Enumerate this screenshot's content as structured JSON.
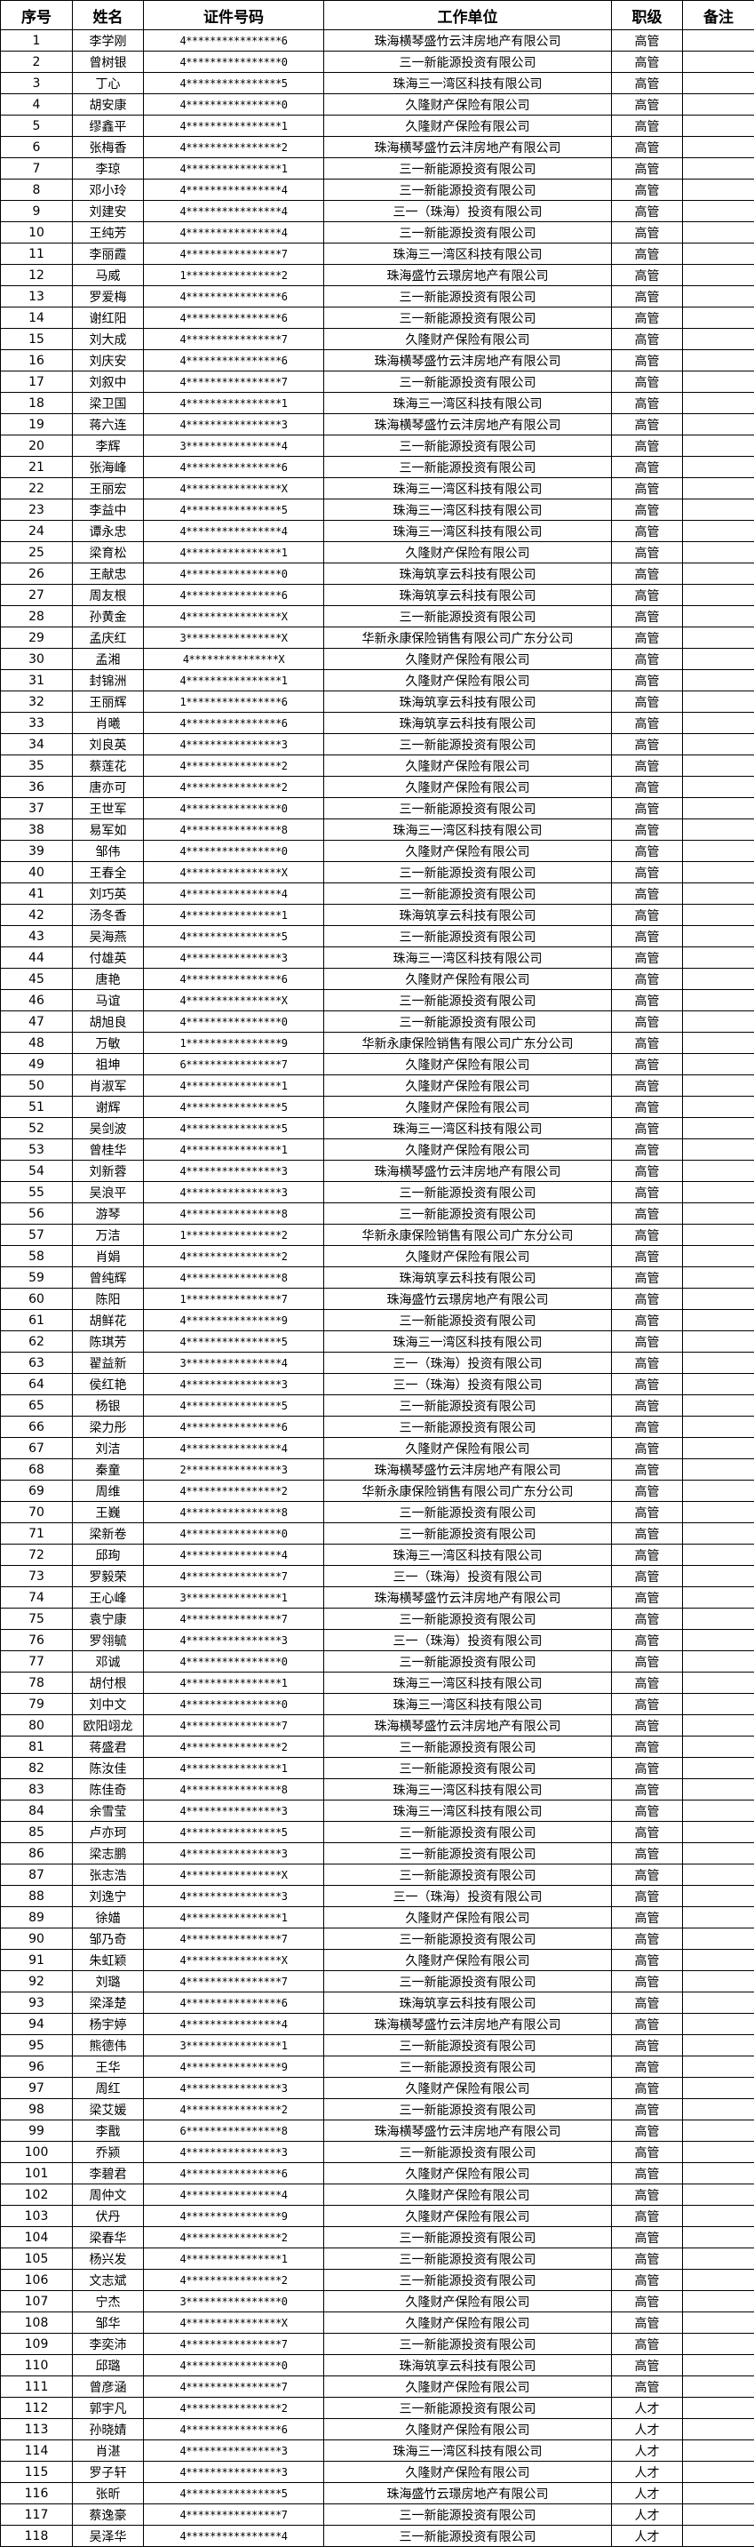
{
  "headers": [
    "序号",
    "姓名",
    "证件号码",
    "工作单位",
    "职级",
    "备注"
  ],
  "rows": [
    [
      "1",
      "李学刚",
      "4****************6",
      "珠海横琴盛竹云沣房地产有限公司",
      "高管",
      ""
    ],
    [
      "2",
      "曾树银",
      "4****************0",
      "三一新能源投资有限公司",
      "高管",
      ""
    ],
    [
      "3",
      "丁心",
      "4****************5",
      "珠海三一湾区科技有限公司",
      "高管",
      ""
    ],
    [
      "4",
      "胡安康",
      "4****************0",
      "久隆财产保险有限公司",
      "高管",
      ""
    ],
    [
      "5",
      "缪鑫平",
      "4****************1",
      "久隆财产保险有限公司",
      "高管",
      ""
    ],
    [
      "6",
      "张梅香",
      "4****************2",
      "珠海横琴盛竹云沣房地产有限公司",
      "高管",
      ""
    ],
    [
      "7",
      "李琼",
      "4****************1",
      "三一新能源投资有限公司",
      "高管",
      ""
    ],
    [
      "8",
      "邓小玲",
      "4****************4",
      "三一新能源投资有限公司",
      "高管",
      ""
    ],
    [
      "9",
      "刘建安",
      "4****************4",
      "三一（珠海）投资有限公司",
      "高管",
      ""
    ],
    [
      "10",
      "王纯芳",
      "4****************4",
      "三一新能源投资有限公司",
      "高管",
      ""
    ],
    [
      "11",
      "李丽霞",
      "4****************7",
      "珠海三一湾区科技有限公司",
      "高管",
      ""
    ],
    [
      "12",
      "马威",
      "1****************2",
      "珠海盛竹云璟房地产有限公司",
      "高管",
      ""
    ],
    [
      "13",
      "罗爱梅",
      "4****************6",
      "三一新能源投资有限公司",
      "高管",
      ""
    ],
    [
      "14",
      "谢红阳",
      "4****************6",
      "三一新能源投资有限公司",
      "高管",
      ""
    ],
    [
      "15",
      "刘大成",
      "4****************7",
      "久隆财产保险有限公司",
      "高管",
      ""
    ],
    [
      "16",
      "刘庆安",
      "4****************6",
      "珠海横琴盛竹云沣房地产有限公司",
      "高管",
      ""
    ],
    [
      "17",
      "刘叙中",
      "4****************7",
      "三一新能源投资有限公司",
      "高管",
      ""
    ],
    [
      "18",
      "梁卫国",
      "4****************1",
      "珠海三一湾区科技有限公司",
      "高管",
      ""
    ],
    [
      "19",
      "蒋六连",
      "4****************3",
      "珠海横琴盛竹云沣房地产有限公司",
      "高管",
      ""
    ],
    [
      "20",
      "李辉",
      "3****************4",
      "三一新能源投资有限公司",
      "高管",
      ""
    ],
    [
      "21",
      "张海峰",
      "4****************6",
      "三一新能源投资有限公司",
      "高管",
      ""
    ],
    [
      "22",
      "王丽宏",
      "4****************X",
      "珠海三一湾区科技有限公司",
      "高管",
      ""
    ],
    [
      "23",
      "李益中",
      "4****************5",
      "珠海三一湾区科技有限公司",
      "高管",
      ""
    ],
    [
      "24",
      "谭永忠",
      "4****************4",
      "珠海三一湾区科技有限公司",
      "高管",
      ""
    ],
    [
      "25",
      "梁育松",
      "4****************1",
      "久隆财产保险有限公司",
      "高管",
      ""
    ],
    [
      "26",
      "王献忠",
      "4****************0",
      "珠海筑享云科技有限公司",
      "高管",
      ""
    ],
    [
      "27",
      "周友根",
      "4****************6",
      "珠海筑享云科技有限公司",
      "高管",
      ""
    ],
    [
      "28",
      "孙黄金",
      "4****************X",
      "三一新能源投资有限公司",
      "高管",
      ""
    ],
    [
      "29",
      "孟庆红",
      "3****************X",
      "华新永康保险销售有限公司广东分公司",
      "高管",
      ""
    ],
    [
      "30",
      "孟湘",
      "4***************X",
      "久隆财产保险有限公司",
      "高管",
      ""
    ],
    [
      "31",
      "封锦洲",
      "4****************1",
      "久隆财产保险有限公司",
      "高管",
      ""
    ],
    [
      "32",
      "王丽辉",
      "1****************6",
      "珠海筑享云科技有限公司",
      "高管",
      ""
    ],
    [
      "33",
      "肖曦",
      "4****************6",
      "珠海筑享云科技有限公司",
      "高管",
      ""
    ],
    [
      "34",
      "刘良英",
      "4****************3",
      "三一新能源投资有限公司",
      "高管",
      ""
    ],
    [
      "35",
      "蔡莲花",
      "4****************2",
      "久隆财产保险有限公司",
      "高管",
      ""
    ],
    [
      "36",
      "唐亦可",
      "4****************2",
      "久隆财产保险有限公司",
      "高管",
      ""
    ],
    [
      "37",
      "王世军",
      "4****************0",
      "三一新能源投资有限公司",
      "高管",
      ""
    ],
    [
      "38",
      "易军如",
      "4****************8",
      "珠海三一湾区科技有限公司",
      "高管",
      ""
    ],
    [
      "39",
      "邹伟",
      "4****************0",
      "久隆财产保险有限公司",
      "高管",
      ""
    ],
    [
      "40",
      "王春全",
      "4****************X",
      "三一新能源投资有限公司",
      "高管",
      ""
    ],
    [
      "41",
      "刘巧英",
      "4****************4",
      "三一新能源投资有限公司",
      "高管",
      ""
    ],
    [
      "42",
      "汤冬香",
      "4****************1",
      "珠海筑享云科技有限公司",
      "高管",
      ""
    ],
    [
      "43",
      "吴海燕",
      "4****************5",
      "三一新能源投资有限公司",
      "高管",
      ""
    ],
    [
      "44",
      "付雄英",
      "4****************3",
      "珠海三一湾区科技有限公司",
      "高管",
      ""
    ],
    [
      "45",
      "唐艳",
      "4****************6",
      "久隆财产保险有限公司",
      "高管",
      ""
    ],
    [
      "46",
      "马谊",
      "4****************X",
      "三一新能源投资有限公司",
      "高管",
      ""
    ],
    [
      "47",
      "胡旭良",
      "4****************0",
      "三一新能源投资有限公司",
      "高管",
      ""
    ],
    [
      "48",
      "万敏",
      "1****************9",
      "华新永康保险销售有限公司广东分公司",
      "高管",
      ""
    ],
    [
      "49",
      "祖坤",
      "6****************7",
      "久隆财产保险有限公司",
      "高管",
      ""
    ],
    [
      "50",
      "肖淑军",
      "4****************1",
      "久隆财产保险有限公司",
      "高管",
      ""
    ],
    [
      "51",
      "谢辉",
      "4****************5",
      "久隆财产保险有限公司",
      "高管",
      ""
    ],
    [
      "52",
      "吴剑波",
      "4****************5",
      "珠海三一湾区科技有限公司",
      "高管",
      ""
    ],
    [
      "53",
      "曾桂华",
      "4****************1",
      "久隆财产保险有限公司",
      "高管",
      ""
    ],
    [
      "54",
      "刘新蓉",
      "4****************3",
      "珠海横琴盛竹云沣房地产有限公司",
      "高管",
      ""
    ],
    [
      "55",
      "吴浪平",
      "4****************3",
      "三一新能源投资有限公司",
      "高管",
      ""
    ],
    [
      "56",
      "游琴",
      "4****************8",
      "三一新能源投资有限公司",
      "高管",
      ""
    ],
    [
      "57",
      "万洁",
      "1****************2",
      "华新永康保险销售有限公司广东分公司",
      "高管",
      ""
    ],
    [
      "58",
      "肖娟",
      "4****************2",
      "久隆财产保险有限公司",
      "高管",
      ""
    ],
    [
      "59",
      "曾纯辉",
      "4****************8",
      "珠海筑享云科技有限公司",
      "高管",
      ""
    ],
    [
      "60",
      "陈阳",
      "1****************7",
      "珠海盛竹云璟房地产有限公司",
      "高管",
      ""
    ],
    [
      "61",
      "胡鲜花",
      "4****************9",
      "三一新能源投资有限公司",
      "高管",
      ""
    ],
    [
      "62",
      "陈琪芳",
      "4****************5",
      "珠海三一湾区科技有限公司",
      "高管",
      ""
    ],
    [
      "63",
      "翟益新",
      "3****************4",
      "三一（珠海）投资有限公司",
      "高管",
      ""
    ],
    [
      "64",
      "侯红艳",
      "4****************3",
      "三一（珠海）投资有限公司",
      "高管",
      ""
    ],
    [
      "65",
      "杨银",
      "4****************5",
      "三一新能源投资有限公司",
      "高管",
      ""
    ],
    [
      "66",
      "梁力彤",
      "4****************6",
      "三一新能源投资有限公司",
      "高管",
      ""
    ],
    [
      "67",
      "刘洁",
      "4****************4",
      "久隆财产保险有限公司",
      "高管",
      ""
    ],
    [
      "68",
      "秦童",
      "2****************3",
      "珠海横琴盛竹云沣房地产有限公司",
      "高管",
      ""
    ],
    [
      "69",
      "周维",
      "4****************2",
      "华新永康保险销售有限公司广东分公司",
      "高管",
      ""
    ],
    [
      "70",
      "王巍",
      "4****************8",
      "三一新能源投资有限公司",
      "高管",
      ""
    ],
    [
      "71",
      "梁新卷",
      "4****************0",
      "三一新能源投资有限公司",
      "高管",
      ""
    ],
    [
      "72",
      "邱珣",
      "4****************4",
      "珠海三一湾区科技有限公司",
      "高管",
      ""
    ],
    [
      "73",
      "罗毅荣",
      "4****************7",
      "三一（珠海）投资有限公司",
      "高管",
      ""
    ],
    [
      "74",
      "王心峰",
      "3****************1",
      "珠海横琴盛竹云沣房地产有限公司",
      "高管",
      ""
    ],
    [
      "75",
      "袁宁康",
      "4****************7",
      "三一新能源投资有限公司",
      "高管",
      ""
    ],
    [
      "76",
      "罗翎毓",
      "4****************3",
      "三一（珠海）投资有限公司",
      "高管",
      ""
    ],
    [
      "77",
      "邓诚",
      "4****************0",
      "三一新能源投资有限公司",
      "高管",
      ""
    ],
    [
      "78",
      "胡付根",
      "4****************1",
      "珠海三一湾区科技有限公司",
      "高管",
      ""
    ],
    [
      "79",
      "刘中文",
      "4****************0",
      "珠海三一湾区科技有限公司",
      "高管",
      ""
    ],
    [
      "80",
      "欧阳翊龙",
      "4****************7",
      "珠海横琴盛竹云沣房地产有限公司",
      "高管",
      ""
    ],
    [
      "81",
      "蒋盛君",
      "4****************2",
      "三一新能源投资有限公司",
      "高管",
      ""
    ],
    [
      "82",
      "陈汝佳",
      "4****************1",
      "三一新能源投资有限公司",
      "高管",
      ""
    ],
    [
      "83",
      "陈佳奇",
      "4****************8",
      "珠海三一湾区科技有限公司",
      "高管",
      ""
    ],
    [
      "84",
      "余雪莹",
      "4****************3",
      "珠海三一湾区科技有限公司",
      "高管",
      ""
    ],
    [
      "85",
      "卢亦珂",
      "4****************5",
      "三一新能源投资有限公司",
      "高管",
      ""
    ],
    [
      "86",
      "梁志鹏",
      "4****************3",
      "三一新能源投资有限公司",
      "高管",
      ""
    ],
    [
      "87",
      "张志浩",
      "4****************X",
      "三一新能源投资有限公司",
      "高管",
      ""
    ],
    [
      "88",
      "刘逸宁",
      "4****************3",
      "三一（珠海）投资有限公司",
      "高管",
      ""
    ],
    [
      "89",
      "徐媌",
      "4****************1",
      "久隆财产保险有限公司",
      "高管",
      ""
    ],
    [
      "90",
      "邹乃奇",
      "4****************7",
      "三一新能源投资有限公司",
      "高管",
      ""
    ],
    [
      "91",
      "朱虹颖",
      "4****************X",
      "久隆财产保险有限公司",
      "高管",
      ""
    ],
    [
      "92",
      "刘璐",
      "4****************7",
      "三一新能源投资有限公司",
      "高管",
      ""
    ],
    [
      "93",
      "梁泽楚",
      "4****************6",
      "珠海筑享云科技有限公司",
      "高管",
      ""
    ],
    [
      "94",
      "杨宇婷",
      "4****************4",
      "珠海横琴盛竹云沣房地产有限公司",
      "高管",
      ""
    ],
    [
      "95",
      "熊德伟",
      "3****************1",
      "三一新能源投资有限公司",
      "高管",
      ""
    ],
    [
      "96",
      "王华",
      "4****************9",
      "三一新能源投资有限公司",
      "高管",
      ""
    ],
    [
      "97",
      "周红",
      "4****************3",
      "久隆财产保险有限公司",
      "高管",
      ""
    ],
    [
      "98",
      "梁艾媛",
      "4****************2",
      "三一新能源投资有限公司",
      "高管",
      ""
    ],
    [
      "99",
      "李戬",
      "6****************8",
      "珠海横琴盛竹云沣房地产有限公司",
      "高管",
      ""
    ],
    [
      "100",
      "乔颍",
      "4****************3",
      "三一新能源投资有限公司",
      "高管",
      ""
    ],
    [
      "101",
      "李碧君",
      "4****************6",
      "久隆财产保险有限公司",
      "高管",
      ""
    ],
    [
      "102",
      "周仲文",
      "4****************4",
      "久隆财产保险有限公司",
      "高管",
      ""
    ],
    [
      "103",
      "伏丹",
      "4****************9",
      "久隆财产保险有限公司",
      "高管",
      ""
    ],
    [
      "104",
      "梁春华",
      "4****************2",
      "三一新能源投资有限公司",
      "高管",
      ""
    ],
    [
      "105",
      "杨兴发",
      "4****************1",
      "三一新能源投资有限公司",
      "高管",
      ""
    ],
    [
      "106",
      "文志斌",
      "4****************2",
      "三一新能源投资有限公司",
      "高管",
      ""
    ],
    [
      "107",
      "宁杰",
      "3****************0",
      "久隆财产保险有限公司",
      "高管",
      ""
    ],
    [
      "108",
      "邹华",
      "4****************X",
      "久隆财产保险有限公司",
      "高管",
      ""
    ],
    [
      "109",
      "李奕沛",
      "4****************7",
      "三一新能源投资有限公司",
      "高管",
      ""
    ],
    [
      "110",
      "邱璐",
      "4****************0",
      "珠海筑享云科技有限公司",
      "高管",
      ""
    ],
    [
      "111",
      "曾彦涵",
      "4****************7",
      "久隆财产保险有限公司",
      "高管",
      ""
    ],
    [
      "112",
      "郭宇凡",
      "4****************2",
      "三一新能源投资有限公司",
      "人才",
      ""
    ],
    [
      "113",
      "孙晓婧",
      "4****************6",
      "久隆财产保险有限公司",
      "人才",
      ""
    ],
    [
      "114",
      "肖湛",
      "4****************3",
      "珠海三一湾区科技有限公司",
      "人才",
      ""
    ],
    [
      "115",
      "罗子轩",
      "4****************3",
      "久隆财产保险有限公司",
      "人才",
      ""
    ],
    [
      "116",
      "张昕",
      "4****************5",
      "珠海盛竹云璟房地产有限公司",
      "人才",
      ""
    ],
    [
      "117",
      "蔡逸豪",
      "4****************7",
      "三一新能源投资有限公司",
      "人才",
      ""
    ],
    [
      "118",
      "吴泽华",
      "4****************4",
      "三一新能源投资有限公司",
      "人才",
      ""
    ]
  ]
}
